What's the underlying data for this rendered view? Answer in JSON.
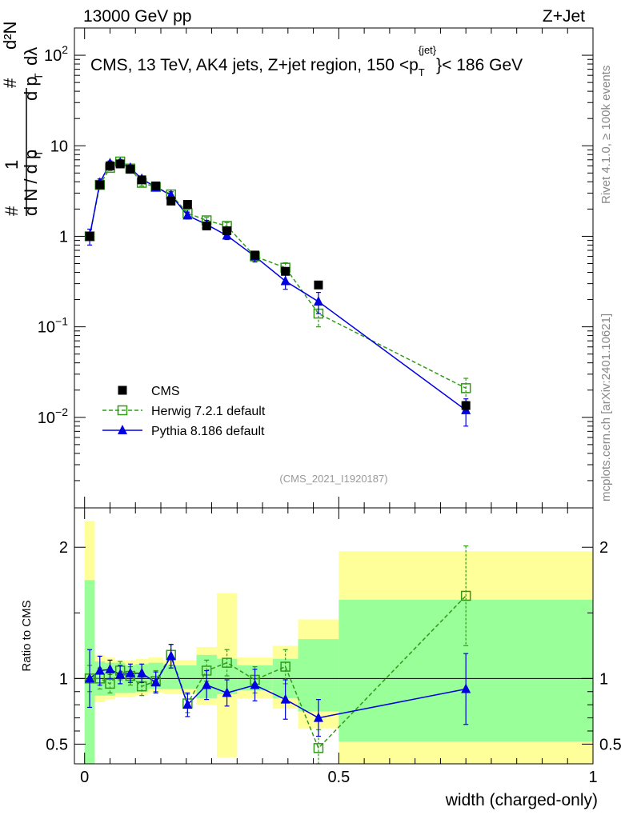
{
  "header": {
    "left": "13000 GeV pp",
    "right": "Z+Jet"
  },
  "side": {
    "rivet": "Rivet 4.1.0, ≥ 100k events",
    "mcplots": "mcplots.cern.ch [arXiv:2401.10621]"
  },
  "chart_data": [
    {
      "type": "scatter",
      "title_parts": {
        "before": "CMS, 13 TeV, AK4 jets, Z+jet region, 150 <p",
        "sub": "T",
        "sup": "{jet}",
        "after": "}< 186 GeV"
      },
      "ylabel": "1 / (dN / dpT) · d²N / (dpT dλ)",
      "ylabel_glyphs": {
        "hash": "#",
        "one": "1",
        "dN": "d N / d p",
        "T": "T",
        "d2N": "d²N",
        "dpTdl_left": "d p",
        "dpTdl_right": "dλ"
      },
      "yscale": "log",
      "ylim": [
        0.001,
        200
      ],
      "xlim": [
        -0.02,
        1.0
      ],
      "yticks": [
        {
          "value": 100,
          "base": "10",
          "exp": "2"
        },
        {
          "value": 10,
          "base": "10",
          "exp": ""
        },
        {
          "value": 1,
          "base": "1",
          "exp": ""
        },
        {
          "value": 0.1,
          "base": "10",
          "exp": "−1"
        },
        {
          "value": 0.01,
          "base": "10",
          "exp": "−2"
        }
      ],
      "watermark": "(CMS_2021_I1920187)",
      "legend": [
        {
          "name": "CMS",
          "marker": "square-filled",
          "color": "#000000"
        },
        {
          "name": "Herwig 7.2.1 default",
          "marker": "square-open",
          "color": "#339919"
        },
        {
          "name": "Pythia 8.186 default",
          "marker": "triangle",
          "color": "#0000e0"
        }
      ],
      "bin_edges": [
        0,
        0.02,
        0.04,
        0.06,
        0.08,
        0.1,
        0.125,
        0.155,
        0.185,
        0.22,
        0.26,
        0.3,
        0.37,
        0.42,
        0.5,
        1.0
      ],
      "x": [
        0.01,
        0.03,
        0.05,
        0.07,
        0.09,
        0.1125,
        0.14,
        0.17,
        0.2025,
        0.24,
        0.28,
        0.335,
        0.395,
        0.46,
        0.75
      ],
      "series": [
        {
          "name": "CMS",
          "values": [
            1.0,
            3.7,
            6.0,
            6.3,
            5.5,
            4.2,
            3.6,
            2.45,
            2.25,
            1.3,
            1.15,
            0.62,
            0.41,
            0.29,
            0.0135
          ]
        },
        {
          "name": "Herwig 7.2.1 default",
          "values": [
            1.0,
            3.7,
            5.7,
            6.7,
            5.6,
            3.9,
            3.5,
            2.9,
            1.8,
            1.5,
            1.3,
            0.6,
            0.45,
            0.14,
            0.021
          ],
          "errors": [
            0.1,
            0.3,
            0.4,
            0.4,
            0.4,
            0.3,
            0.3,
            0.2,
            0.15,
            0.12,
            0.12,
            0.06,
            0.06,
            0.04,
            0.006
          ]
        },
        {
          "name": "Pythia 8.186 default",
          "values": [
            1.0,
            3.9,
            6.4,
            6.5,
            5.7,
            4.3,
            3.5,
            2.85,
            1.7,
            1.35,
            1.02,
            0.6,
            0.32,
            0.19,
            0.012
          ],
          "errors": [
            0.2,
            0.4,
            0.4,
            0.4,
            0.4,
            0.3,
            0.3,
            0.25,
            0.15,
            0.15,
            0.1,
            0.08,
            0.06,
            0.05,
            0.004
          ]
        }
      ]
    },
    {
      "type": "scatter",
      "ylabel": "Ratio to CMS",
      "xlabel": "width (charged-only)",
      "ylim": [
        0.35,
        2.3
      ],
      "xlim": [
        -0.02,
        1.0
      ],
      "yticks": [
        0.5,
        1,
        2
      ],
      "ytick_labels": [
        "0.5",
        "1",
        "2"
      ],
      "xticks": [
        0,
        0.5,
        1
      ],
      "xtick_labels": [
        "0",
        "0.5",
        "1"
      ],
      "reference_line": 1,
      "band_colors": {
        "inner": "#99ff99",
        "outer": "#ffff99"
      },
      "bands": {
        "inner": [
          [
            0.35,
            1.75
          ],
          [
            0.87,
            1.13
          ],
          [
            0.87,
            1.12
          ],
          [
            0.89,
            1.12
          ],
          [
            0.89,
            1.1
          ],
          [
            0.9,
            1.11
          ],
          [
            0.92,
            1.12
          ],
          [
            0.92,
            1.1
          ],
          [
            0.92,
            1.1
          ],
          [
            0.85,
            1.18
          ],
          [
            0.88,
            1.15
          ],
          [
            0.91,
            1.1
          ],
          [
            0.85,
            1.15
          ],
          [
            0.75,
            1.3
          ],
          [
            0.52,
            1.6
          ]
        ],
        "outer": [
          [
            0.35,
            2.2
          ],
          [
            0.82,
            1.18
          ],
          [
            0.84,
            1.16
          ],
          [
            0.86,
            1.14
          ],
          [
            0.86,
            1.14
          ],
          [
            0.87,
            1.15
          ],
          [
            0.89,
            1.16
          ],
          [
            0.88,
            1.14
          ],
          [
            0.88,
            1.14
          ],
          [
            0.8,
            1.24
          ],
          [
            0.4,
            1.65
          ],
          [
            0.85,
            1.16
          ],
          [
            0.77,
            1.25
          ],
          [
            0.62,
            1.45
          ],
          [
            0.35,
            1.97
          ]
        ]
      },
      "series": [
        {
          "name": "Herwig 7.2.1 default",
          "values": [
            1.0,
            1.0,
            0.96,
            1.06,
            1.02,
            0.94,
            0.98,
            1.18,
            0.81,
            1.06,
            1.12,
            0.99,
            1.09,
            0.47,
            1.63
          ],
          "errors": [
            0.1,
            0.08,
            0.07,
            0.07,
            0.07,
            0.07,
            0.08,
            0.08,
            0.07,
            0.08,
            0.1,
            0.1,
            0.13,
            0.14,
            0.38
          ]
        },
        {
          "name": "Pythia 8.186 default",
          "values": [
            1.0,
            1.06,
            1.07,
            1.03,
            1.04,
            1.04,
            0.97,
            1.17,
            0.8,
            0.95,
            0.89,
            0.95,
            0.84,
            0.7,
            0.92
          ],
          "errors": [
            0.22,
            0.11,
            0.07,
            0.07,
            0.07,
            0.07,
            0.08,
            0.09,
            0.09,
            0.11,
            0.1,
            0.12,
            0.15,
            0.14,
            0.27
          ]
        }
      ]
    }
  ]
}
